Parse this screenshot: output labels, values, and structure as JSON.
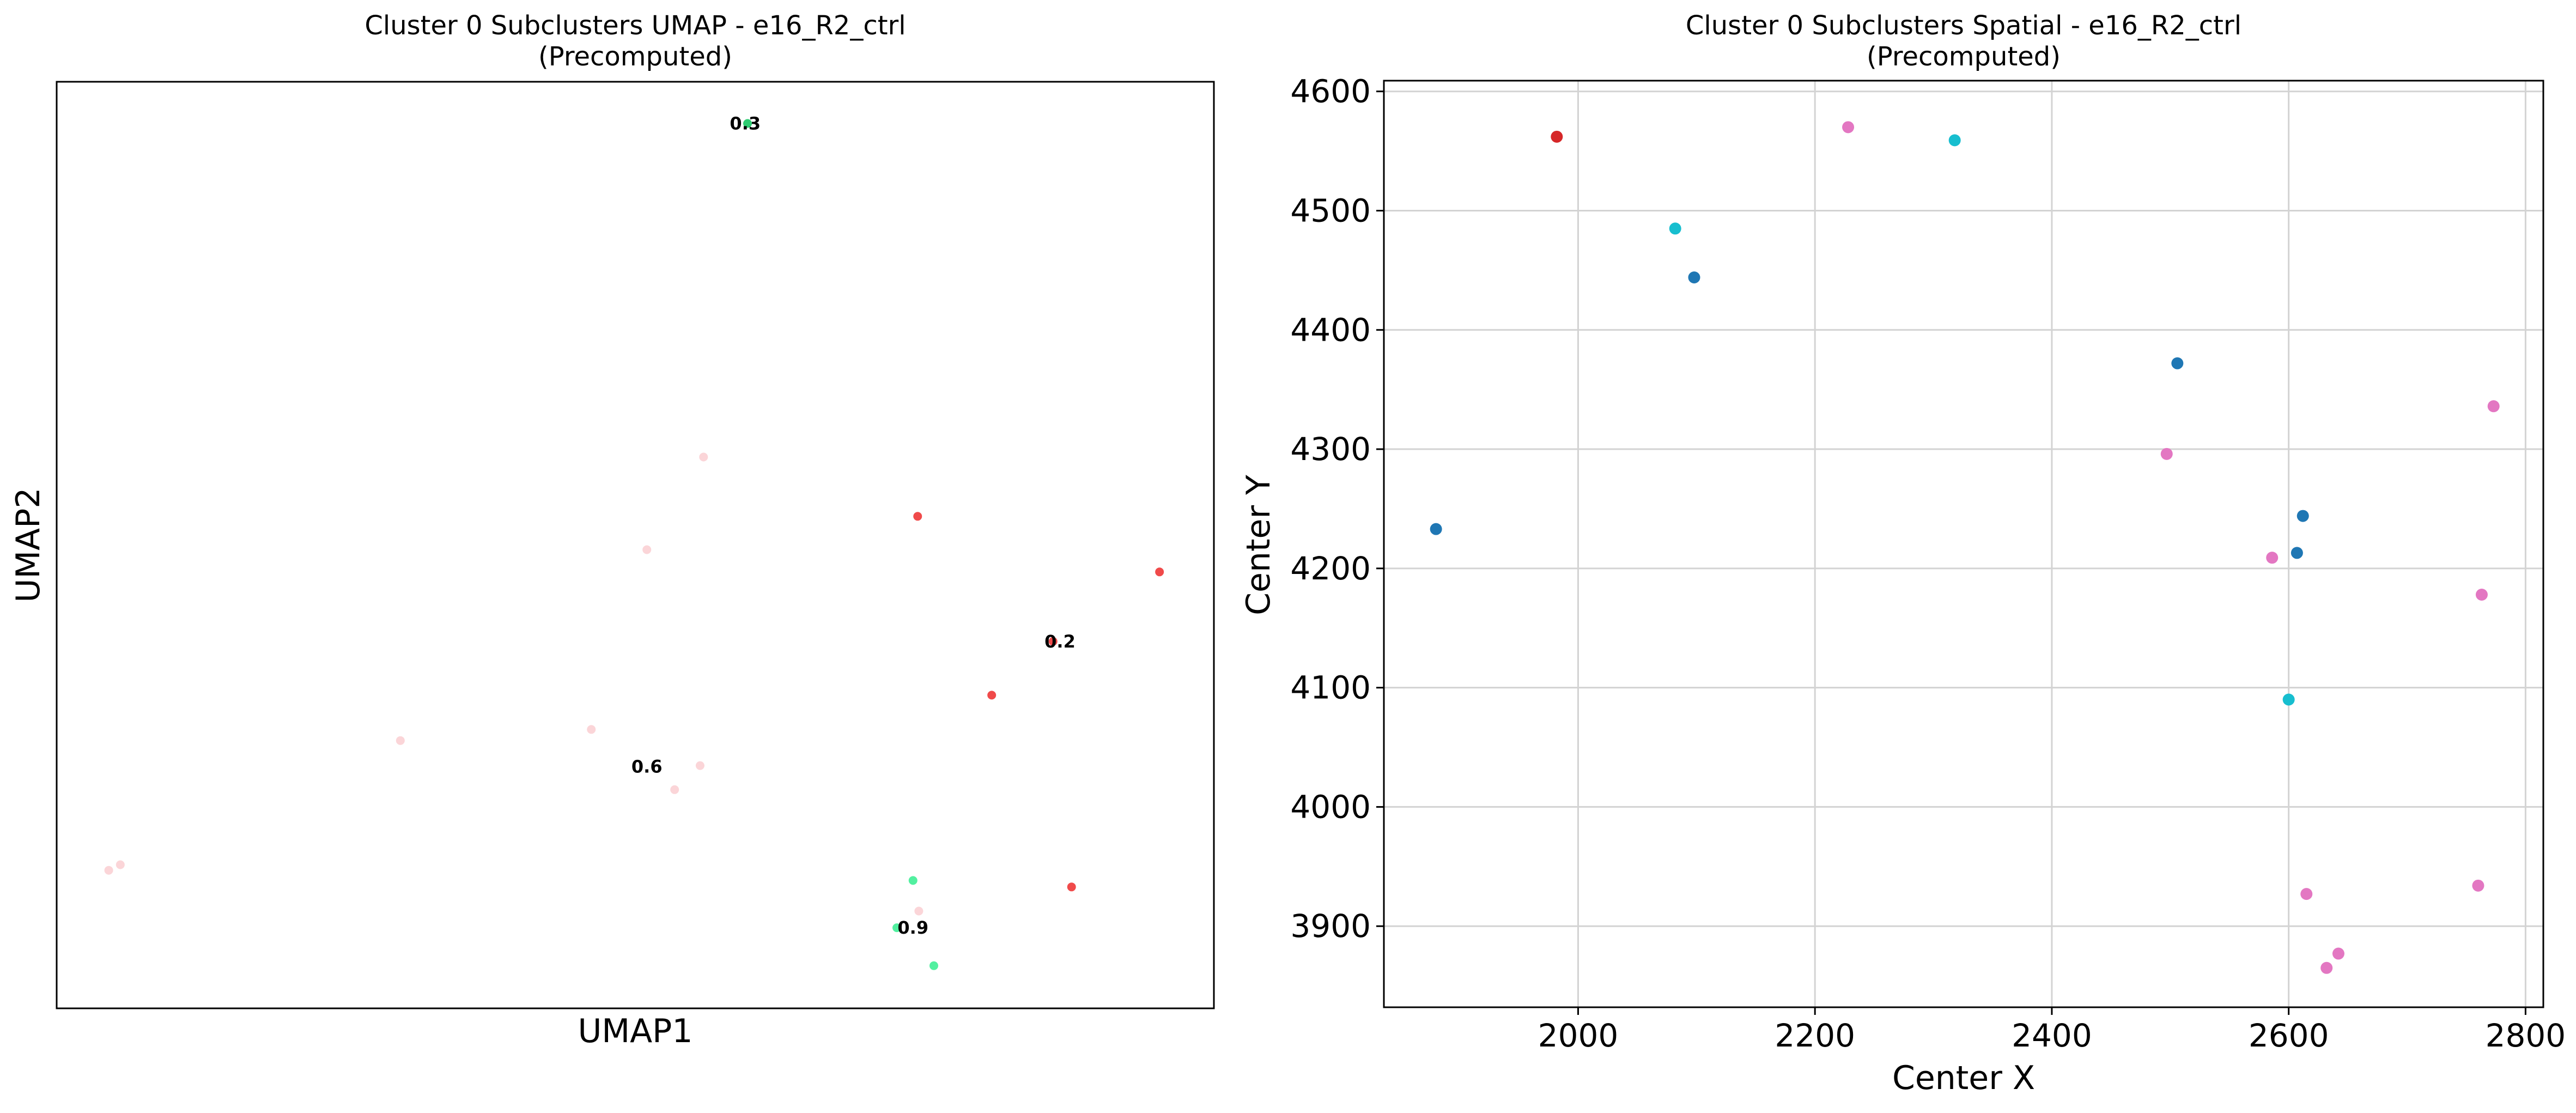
{
  "umap_panel": {
    "title_line1": "Cluster 0 Subclusters UMAP - e16_R2_ctrl",
    "title_line2": "(Precomputed)",
    "xlabel": "UMAP1",
    "ylabel": "UMAP2"
  },
  "spatial_panel": {
    "title_line1": "Cluster 0 Subclusters Spatial - e16_R2_ctrl",
    "title_line2": "(Precomputed)",
    "xlabel": "Center X",
    "ylabel": "Center Y"
  },
  "chart_data": [
    {
      "type": "scatter",
      "title": "Cluster 0 Subclusters UMAP - e16_R2_ctrl (Precomputed)",
      "xlabel": "UMAP1",
      "ylabel": "UMAP2",
      "xlim": [
        0,
        1
      ],
      "ylim": [
        0,
        1
      ],
      "show_ticks": false,
      "grid": false,
      "points": [
        {
          "x": 0.597,
          "y": 0.955,
          "color": "#2ecc71"
        },
        {
          "x": 0.559,
          "y": 0.595,
          "color": "#fbd5d8"
        },
        {
          "x": 0.51,
          "y": 0.495,
          "color": "#fbd5d8"
        },
        {
          "x": 0.744,
          "y": 0.531,
          "color": "#f04a4a"
        },
        {
          "x": 0.953,
          "y": 0.471,
          "color": "#f04a4a"
        },
        {
          "x": 0.861,
          "y": 0.396,
          "color": "#f04a4a"
        },
        {
          "x": 0.808,
          "y": 0.338,
          "color": "#f04a4a"
        },
        {
          "x": 0.297,
          "y": 0.289,
          "color": "#fbd5d8"
        },
        {
          "x": 0.462,
          "y": 0.301,
          "color": "#fbd5d8"
        },
        {
          "x": 0.556,
          "y": 0.262,
          "color": "#fbd5d8"
        },
        {
          "x": 0.534,
          "y": 0.236,
          "color": "#fbd5d8"
        },
        {
          "x": 0.045,
          "y": 0.149,
          "color": "#fbd5d8"
        },
        {
          "x": 0.055,
          "y": 0.155,
          "color": "#fbd5d8"
        },
        {
          "x": 0.74,
          "y": 0.138,
          "color": "#52f0a0"
        },
        {
          "x": 0.877,
          "y": 0.131,
          "color": "#f04a4a"
        },
        {
          "x": 0.745,
          "y": 0.105,
          "color": "#fbd5d8"
        },
        {
          "x": 0.726,
          "y": 0.087,
          "color": "#52f0a0"
        },
        {
          "x": 0.758,
          "y": 0.046,
          "color": "#52f0a0"
        }
      ],
      "annotations": [
        {
          "text": "0.3",
          "x": 0.595,
          "y": 0.955
        },
        {
          "text": "0.2",
          "x": 0.867,
          "y": 0.396
        },
        {
          "text": "0.6",
          "x": 0.51,
          "y": 0.261
        },
        {
          "text": "0.9",
          "x": 0.74,
          "y": 0.087
        }
      ]
    },
    {
      "type": "scatter",
      "title": "Cluster 0 Subclusters Spatial - e16_R2_ctrl (Precomputed)",
      "xlabel": "Center X",
      "ylabel": "Center Y",
      "xlim": [
        1836,
        2815
      ],
      "ylim": [
        3832,
        4609
      ],
      "xticks": [
        2000,
        2200,
        2400,
        2600,
        2800
      ],
      "yticks": [
        3900,
        4000,
        4100,
        4200,
        4300,
        4400,
        4500,
        4600
      ],
      "grid": true,
      "points": [
        {
          "x": 1880,
          "y": 4233,
          "color": "#1f77b4"
        },
        {
          "x": 1982,
          "y": 4562,
          "color": "#d62728"
        },
        {
          "x": 2082,
          "y": 4485,
          "color": "#17becf"
        },
        {
          "x": 2098,
          "y": 4444,
          "color": "#1f77b4"
        },
        {
          "x": 2228,
          "y": 4570,
          "color": "#e377c2"
        },
        {
          "x": 2318,
          "y": 4559,
          "color": "#17becf"
        },
        {
          "x": 2506,
          "y": 4372,
          "color": "#1f77b4"
        },
        {
          "x": 2497,
          "y": 4296,
          "color": "#e377c2"
        },
        {
          "x": 2612,
          "y": 4244,
          "color": "#1f77b4"
        },
        {
          "x": 2607,
          "y": 4213,
          "color": "#1f77b4"
        },
        {
          "x": 2586,
          "y": 4209,
          "color": "#e377c2"
        },
        {
          "x": 2600,
          "y": 4090,
          "color": "#17becf"
        },
        {
          "x": 2773,
          "y": 4336,
          "color": "#e377c2"
        },
        {
          "x": 2763,
          "y": 4178,
          "color": "#e377c2"
        },
        {
          "x": 2615,
          "y": 3927,
          "color": "#e377c2"
        },
        {
          "x": 2760,
          "y": 3934,
          "color": "#e377c2"
        },
        {
          "x": 2642,
          "y": 3877,
          "color": "#e377c2"
        },
        {
          "x": 2632,
          "y": 3865,
          "color": "#e377c2"
        }
      ]
    }
  ]
}
